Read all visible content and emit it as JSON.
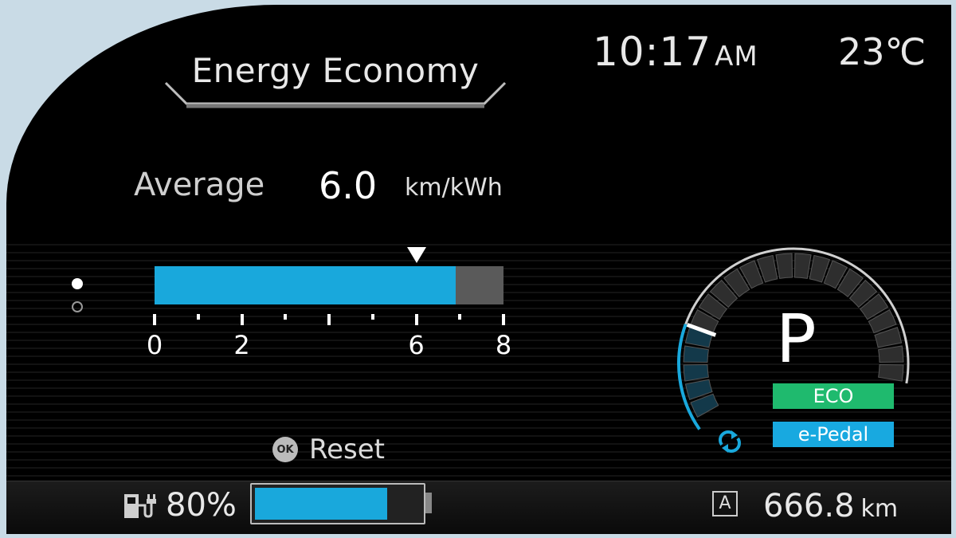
{
  "header": {
    "title": "Energy Economy",
    "time": "10:17",
    "ampm": "AM",
    "temperature": "23℃"
  },
  "average": {
    "label": "Average",
    "value": "6.0",
    "unit": "km/kWh"
  },
  "economy_bar": {
    "min": 0,
    "max": 8,
    "fill_value": 6.9,
    "marker_value": 6.0,
    "tick_labels": [
      "0",
      "2",
      "6",
      "8"
    ],
    "tick_label_values": [
      0,
      2,
      6,
      8
    ]
  },
  "reset": {
    "ok_label": "OK",
    "label": "Reset"
  },
  "drive": {
    "gear": "P",
    "modes": [
      "ECO",
      "e-Pedal"
    ],
    "eco_color": "#1fba6e",
    "epedal_color": "#18a9e0"
  },
  "status": {
    "battery_percent": "80%",
    "battery_level": 0.8,
    "range_icon_label": "A",
    "range_value": "666.8",
    "range_unit": "km"
  },
  "colors": {
    "accent_blue": "#19a8dc"
  }
}
